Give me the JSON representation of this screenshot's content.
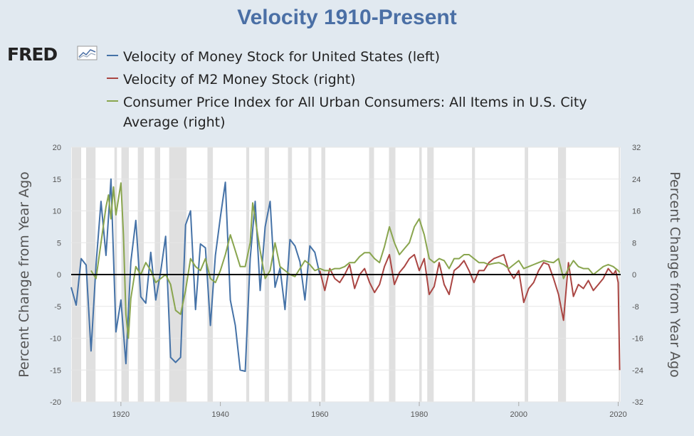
{
  "title": "Velocity 1910-Present",
  "logo_text": "FRED",
  "colors": {
    "background": "#e1e9f0",
    "plot_bg": "#ffffff",
    "recession": "#e0e0e0",
    "zero_line": "#000000"
  },
  "chart_data": {
    "type": "line",
    "title": "Velocity 1910-Present",
    "ylabel": "Percent Change from Year Ago",
    "ylabel_right": "Percent Change from Year Ago",
    "xlim": [
      1910,
      2020.5
    ],
    "ylim": [
      -20,
      20
    ],
    "ylim_right": [
      -32,
      32
    ],
    "x_ticks": [
      "1920",
      "1940",
      "1960",
      "1980",
      "2000",
      "2020"
    ],
    "y_ticks": [
      "20",
      "15",
      "10",
      "5",
      "0",
      "-5",
      "-10",
      "-15",
      "-20"
    ],
    "y_ticks_right": [
      "32",
      "24",
      "16",
      "8",
      "0",
      "-8",
      "-16",
      "-24",
      "-32"
    ],
    "recessions": [
      [
        1910.1,
        1912.0
      ],
      [
        1913.0,
        1914.9
      ],
      [
        1918.7,
        1919.2
      ],
      [
        1920.1,
        1921.6
      ],
      [
        1923.4,
        1924.6
      ],
      [
        1926.8,
        1927.9
      ],
      [
        1929.7,
        1933.2
      ],
      [
        1937.4,
        1938.5
      ],
      [
        1945.2,
        1945.8
      ],
      [
        1948.9,
        1949.8
      ],
      [
        1953.6,
        1954.4
      ],
      [
        1957.7,
        1958.3
      ],
      [
        1960.3,
        1961.1
      ],
      [
        1969.9,
        1970.9
      ],
      [
        1973.9,
        1975.2
      ],
      [
        1980.0,
        1980.5
      ],
      [
        1981.6,
        1982.9
      ],
      [
        1990.6,
        1991.2
      ],
      [
        2001.2,
        2001.9
      ],
      [
        2007.9,
        2009.5
      ],
      [
        2020.1,
        2020.4
      ]
    ],
    "series": [
      {
        "name": "Velocity of Money Stock for United States (left)",
        "color": "#4572a7",
        "axis": "left",
        "x": [
          1910,
          1911,
          1912,
          1913,
          1914,
          1915,
          1916,
          1917,
          1918,
          1919,
          1920,
          1921,
          1922,
          1923,
          1924,
          1925,
          1926,
          1927,
          1928,
          1929,
          1930,
          1931,
          1932,
          1933,
          1934,
          1935,
          1936,
          1937,
          1938,
          1939,
          1940,
          1941,
          1942,
          1943,
          1944,
          1945,
          1946,
          1947,
          1948,
          1949,
          1950,
          1951,
          1952,
          1953,
          1954,
          1955,
          1956,
          1957,
          1958,
          1959,
          1960
        ],
        "y": [
          -2,
          -4.8,
          2.5,
          1.5,
          -12,
          1.5,
          11.5,
          3,
          15,
          -9,
          -4,
          -14,
          2,
          8.5,
          -3.5,
          -4.5,
          3.5,
          -4,
          0.5,
          6,
          -13,
          -13.8,
          -13,
          7.8,
          10,
          -5.5,
          4.8,
          4.2,
          -8,
          3,
          9,
          14.5,
          -4,
          -8,
          -15,
          -15.2,
          2.5,
          11.5,
          -2.5,
          7.5,
          11.5,
          -2,
          1,
          -5.5,
          5.5,
          4.5,
          2,
          -4,
          4.5,
          3.5,
          0
        ]
      },
      {
        "name": "Velocity of M2 Money Stock (right)",
        "color": "#aa4643",
        "axis": "right",
        "x": [
          1960,
          1961,
          1962,
          1963,
          1964,
          1965,
          1966,
          1967,
          1968,
          1969,
          1970,
          1971,
          1972,
          1973,
          1974,
          1975,
          1976,
          1977,
          1978,
          1979,
          1980,
          1981,
          1982,
          1983,
          1984,
          1985,
          1986,
          1987,
          1988,
          1989,
          1990,
          1991,
          1992,
          1993,
          1994,
          1995,
          1996,
          1997,
          1998,
          1999,
          2000,
          2001,
          2002,
          2003,
          2004,
          2005,
          2006,
          2007,
          2008,
          2009,
          2010,
          2011,
          2012,
          2013,
          2014,
          2015,
          2016,
          2017,
          2018,
          2019,
          2019.5,
          2020,
          2020.3
        ],
        "y": [
          1,
          -4,
          1.5,
          -1,
          -2,
          0,
          2.5,
          -3.5,
          0,
          1.5,
          -2,
          -4.5,
          -2.5,
          2,
          5,
          -2.5,
          0.5,
          2,
          4,
          5,
          1,
          4,
          -5,
          -3,
          3,
          -2.5,
          -5,
          1,
          2,
          3.5,
          1,
          -2,
          1,
          1,
          3,
          4,
          4.5,
          5,
          1,
          -1,
          1,
          -7,
          -3.5,
          -2,
          1,
          3,
          2.5,
          -1,
          -5,
          -11.5,
          3,
          -5.5,
          -2.5,
          -3.5,
          -1.5,
          -4,
          -2.5,
          -1,
          1.5,
          0,
          1,
          -2,
          -24
        ]
      },
      {
        "name": "Consumer Price Index for All Urban Consumers: All Items in U.S. City Average (right)",
        "color": "#89a54e",
        "axis": "right",
        "x": [
          1914,
          1915,
          1916,
          1917,
          1917.5,
          1918,
          1918.5,
          1919,
          1920,
          1920.5,
          1921,
          1921.5,
          1922,
          1923,
          1924,
          1925,
          1926,
          1927,
          1928,
          1929,
          1930,
          1931,
          1932,
          1933,
          1934,
          1935,
          1936,
          1937,
          1938,
          1939,
          1940,
          1941,
          1942,
          1943,
          1944,
          1945,
          1946,
          1946.5,
          1947,
          1948,
          1949,
          1950,
          1951,
          1952,
          1953,
          1954,
          1955,
          1956,
          1957,
          1958,
          1959,
          1960,
          1961,
          1962,
          1963,
          1964,
          1965,
          1966,
          1967,
          1968,
          1969,
          1970,
          1971,
          1972,
          1973,
          1974,
          1975,
          1976,
          1977,
          1978,
          1979,
          1980,
          1981,
          1982,
          1983,
          1984,
          1985,
          1986,
          1987,
          1988,
          1989,
          1990,
          1991,
          1992,
          1993,
          1994,
          1995,
          1996,
          1997,
          1998,
          1999,
          2000,
          2001,
          2002,
          2003,
          2004,
          2005,
          2006,
          2007,
          2008,
          2009,
          2010,
          2011,
          2012,
          2013,
          2014,
          2015,
          2016,
          2017,
          2018,
          2019,
          2020,
          2020.3
        ],
        "y": [
          1,
          -1,
          8,
          17,
          20,
          14,
          22,
          15,
          23,
          10,
          -10,
          -16,
          -6,
          2,
          0,
          3,
          1,
          -2,
          -1,
          0,
          -2.5,
          -9,
          -10,
          -4,
          4,
          2,
          1,
          4,
          -1,
          -2,
          1,
          5,
          10,
          6,
          2,
          2,
          8,
          18,
          14,
          6,
          -1,
          1,
          8,
          2,
          1,
          0,
          -0.5,
          1.5,
          3.5,
          2.5,
          1,
          1.5,
          1,
          1,
          1.5,
          1.5,
          2,
          3,
          3,
          4.5,
          5.5,
          5.5,
          4,
          3,
          7,
          12,
          8,
          5,
          6.5,
          8,
          12,
          14,
          10,
          4,
          3,
          4,
          3.5,
          1.5,
          4,
          4,
          5,
          5,
          4,
          3,
          3,
          2.5,
          2.8,
          3,
          2.5,
          1.5,
          2.5,
          3.5,
          1.5,
          2,
          2.5,
          3,
          3.5,
          3.2,
          3,
          4,
          -1,
          1.5,
          3.5,
          2,
          1.5,
          1.5,
          0,
          1,
          2,
          2.5,
          2,
          1,
          0.5
        ]
      }
    ]
  }
}
